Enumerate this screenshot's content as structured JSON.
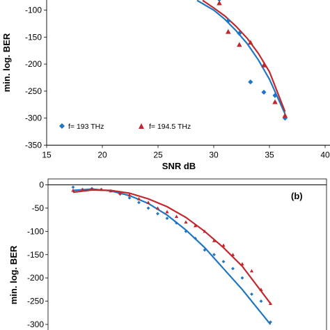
{
  "chart_data": [
    {
      "type": "scatter",
      "title": "",
      "xlabel": "SNR dB",
      "ylabel": "min. log. BER",
      "xlim": [
        15,
        40
      ],
      "ylim": [
        -350,
        -100
      ],
      "x_ticks": [
        "15",
        "20",
        "25",
        "30",
        "35",
        "40"
      ],
      "y_ticks": [
        "-100",
        "-150",
        "-200",
        "-250",
        "-300",
        "-350"
      ],
      "grid": false,
      "legend_position": "bottom-left",
      "series": [
        {
          "name": "f= 193 THz",
          "marker": "diamond",
          "color": "#1f77c4",
          "x": [
            30.5,
            31.3,
            32.3,
            33.3,
            34.5,
            35.5,
            36.4
          ],
          "y": [
            -80,
            -120,
            -143,
            -233,
            -252,
            -258,
            -300
          ],
          "fit": [
            [
              28.5,
              -82
            ],
            [
              30,
              -100
            ],
            [
              31,
              -117
            ],
            [
              32,
              -138
            ],
            [
              33,
              -162
            ],
            [
              34,
              -192
            ],
            [
              35,
              -228
            ],
            [
              36.4,
              -292
            ]
          ]
        },
        {
          "name": "f= 194.5 THz",
          "marker": "triangle",
          "color": "#c0282d",
          "x": [
            30.5,
            31.3,
            32.3,
            33.3,
            34.5,
            35.5,
            36.4
          ],
          "y": [
            -87,
            -140,
            -164,
            -160,
            -202,
            -270,
            -295
          ],
          "fit": [
            [
              29,
              -82
            ],
            [
              30,
              -96
            ],
            [
              31,
              -111
            ],
            [
              32,
              -130
            ],
            [
              33,
              -152
            ],
            [
              34,
              -180
            ],
            [
              35,
              -214
            ],
            [
              36.4,
              -288
            ]
          ]
        }
      ]
    },
    {
      "type": "scatter",
      "title": "",
      "panel_label": "(b)",
      "xlabel": "",
      "ylabel": "min. log. BER",
      "ylim": [
        -300,
        0
      ],
      "y_ticks": [
        "0",
        "-50",
        "-100",
        "-150",
        "-200",
        "-250",
        "-300"
      ],
      "grid": false,
      "series": [
        {
          "marker": "diamond",
          "color": "#1f77c4",
          "x": [
            0,
            1,
            2,
            3,
            4,
            5,
            6,
            7,
            8,
            9,
            10,
            11,
            12,
            13,
            14,
            15,
            16,
            17,
            18,
            19,
            20,
            21
          ],
          "y": [
            -5,
            -10,
            -8,
            -10,
            -13,
            -20,
            -28,
            -38,
            -50,
            -62,
            -72,
            -82,
            -100,
            -115,
            -140,
            -150,
            -165,
            -180,
            -200,
            -235,
            -250,
            -295
          ],
          "fit": [
            [
              0,
              -12
            ],
            [
              2,
              -9
            ],
            [
              4,
              -13
            ],
            [
              6,
              -23
            ],
            [
              8,
              -40
            ],
            [
              10,
              -65
            ],
            [
              12,
              -97
            ],
            [
              14,
              -135
            ],
            [
              16,
              -180
            ],
            [
              18,
              -225
            ],
            [
              21,
              -300
            ]
          ]
        },
        {
          "marker": "triangle",
          "color": "#c0282d",
          "x": [
            0,
            1,
            2,
            3,
            4,
            5,
            6,
            7,
            8,
            9,
            10,
            11,
            12,
            13,
            14,
            15,
            16,
            17,
            18,
            19,
            20,
            21
          ],
          "y": [
            -12,
            -10,
            -9,
            -10,
            -13,
            -17,
            -22,
            -30,
            -38,
            -50,
            -58,
            -68,
            -80,
            -88,
            -100,
            -120,
            -130,
            -150,
            -170,
            -185,
            -225,
            -255
          ],
          "fit": [
            [
              0,
              -16
            ],
            [
              2,
              -11
            ],
            [
              4,
              -12
            ],
            [
              6,
              -18
            ],
            [
              8,
              -30
            ],
            [
              10,
              -47
            ],
            [
              12,
              -70
            ],
            [
              14,
              -100
            ],
            [
              16,
              -135
            ],
            [
              18,
              -175
            ],
            [
              21,
              -255
            ]
          ]
        }
      ]
    }
  ]
}
